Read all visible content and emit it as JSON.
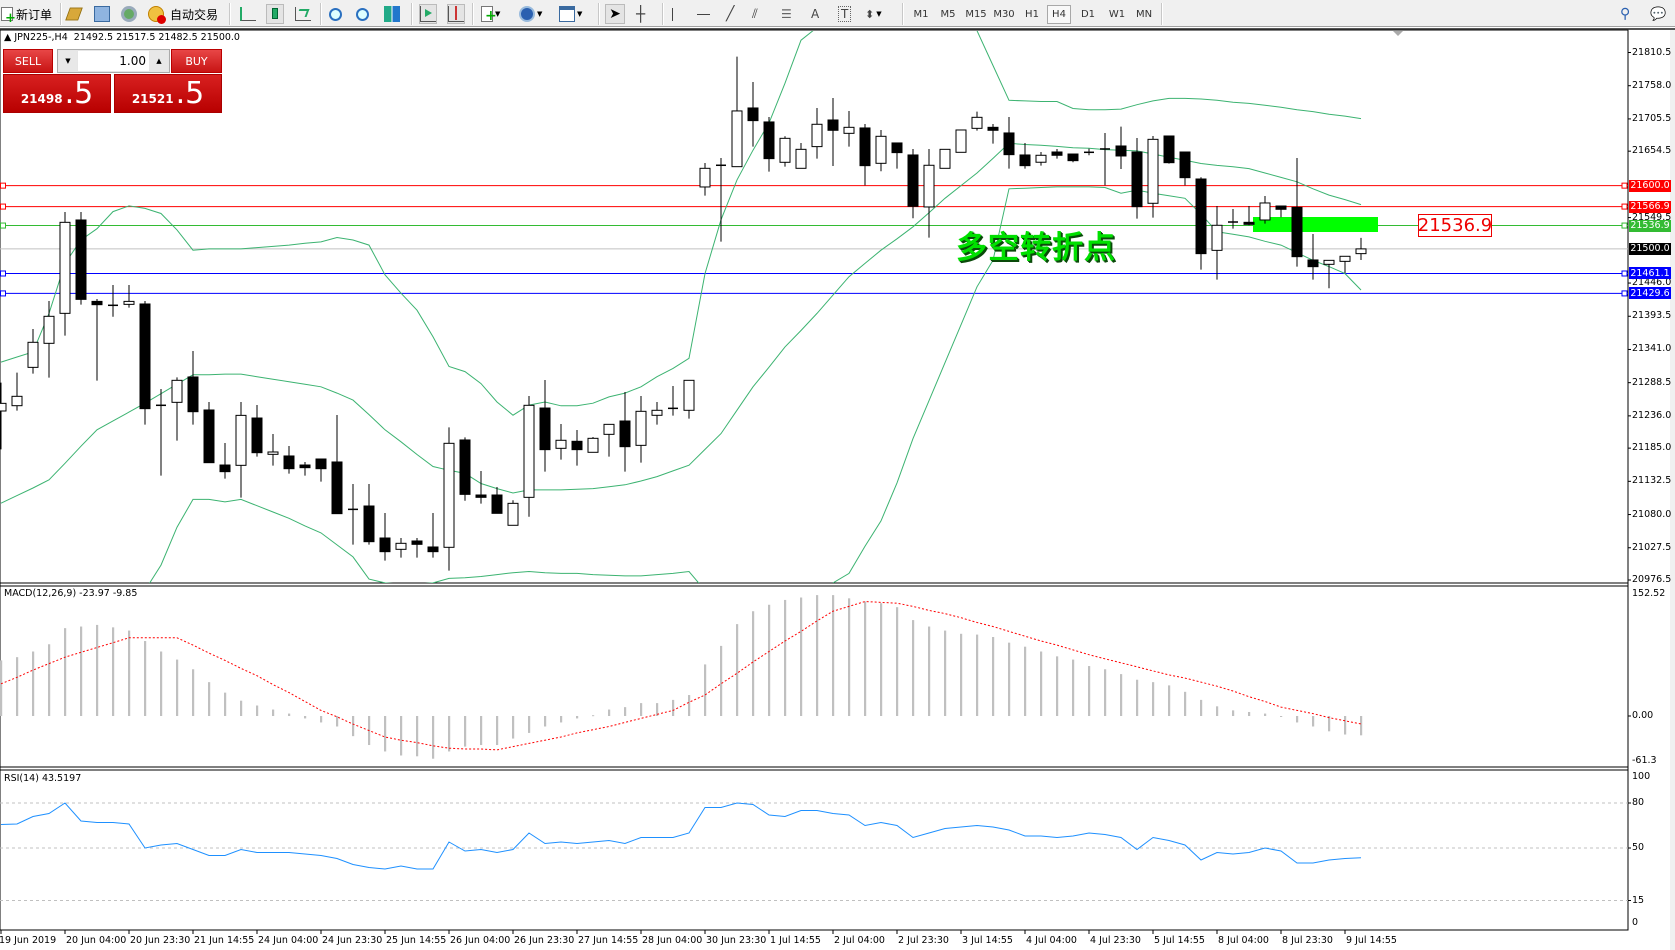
{
  "toolbar": {
    "new_order": "新订单",
    "auto_trading": "自动交易",
    "icons": [
      "new-order-icon",
      "gold-icon",
      "terminal-icon",
      "signals-icon",
      "auto-trading-icon",
      "bar-chart-icon",
      "candlestick-icon",
      "line-chart-icon",
      "zoom-in-icon",
      "zoom-out-icon",
      "tile-windows-icon",
      "auto-scroll-icon",
      "chart-shift-icon",
      "indicators-icon",
      "periods-icon",
      "templates-icon",
      "cursor-icon",
      "crosshair-icon",
      "vertical-line-icon",
      "horizontal-line-icon",
      "trendline-icon",
      "fibonacci-icon",
      "equidistant-channel-icon",
      "text-icon",
      "text-label-icon",
      "arrows-icon",
      "search-icon",
      "chat-icon"
    ],
    "timeframes": [
      "M1",
      "M5",
      "M15",
      "M30",
      "H1",
      "H4",
      "D1",
      "W1",
      "MN"
    ],
    "active_timeframe": "H4"
  },
  "chart": {
    "header": "JPN225-,H4  21492.5 21517.5 21482.5 21500.0",
    "annotation": "多空转折点",
    "level_callout": "21536.9"
  },
  "trade_panel": {
    "sell_label": "SELL",
    "buy_label": "BUY",
    "lot": "1.00",
    "sell_price_main": "21498",
    "sell_price_frac": ".5",
    "buy_price_main": "21521",
    "buy_price_frac": ".5"
  },
  "price_axis": {
    "ticks": [
      "21810.5",
      "21758.0",
      "21705.5",
      "21654.5",
      "21549.5",
      "21446.0",
      "21393.5",
      "21341.0",
      "21288.5",
      "21236.0",
      "21185.0",
      "21132.5",
      "21080.0",
      "21027.5",
      "20976.5"
    ],
    "levels": [
      {
        "label": "21600.0",
        "color": "#ff0000"
      },
      {
        "label": "21566.9",
        "color": "#ff0000"
      },
      {
        "label": "21536.9",
        "color": "#33bb33"
      },
      {
        "label": "21500.0",
        "color": "#000000"
      },
      {
        "label": "21461.1",
        "color": "#0000ff"
      },
      {
        "label": "21429.6",
        "color": "#0000ff"
      }
    ]
  },
  "macd": {
    "label": "MACD(12,26,9) -23.97 -9.85",
    "ticks": [
      "152.52",
      "0.00",
      "-61.3"
    ]
  },
  "rsi": {
    "label": "RSI(14) 43.5197",
    "ticks": [
      "100",
      "80",
      "50",
      "15",
      "0"
    ]
  },
  "time_axis": [
    "19 Jun 2019",
    "20 Jun 04:00",
    "20 Jun 23:30",
    "21 Jun 14:55",
    "24 Jun 04:00",
    "24 Jun 23:30",
    "25 Jun 14:55",
    "26 Jun 04:00",
    "26 Jun 23:30",
    "27 Jun 14:55",
    "28 Jun 04:00",
    "30 Jun 23:30",
    "1 Jul 14:55",
    "2 Jul 04:00",
    "2 Jul 23:30",
    "3 Jul 14:55",
    "4 Jul 04:00",
    "4 Jul 23:30",
    "5 Jul 14:55",
    "8 Jul 04:00",
    "8 Jul 23:30",
    "9 Jul 14:55"
  ],
  "colors": {
    "bollinger": "#3cb371",
    "macd_hist": "#c0c0c0",
    "macd_signal": "#ff0000",
    "rsi": "#1e90ff",
    "bid_line": "#c0c0c0",
    "accent_green_zone": "#00ff00"
  },
  "chart_data": {
    "type": "candlestick",
    "symbol": "JPN225-",
    "timeframe": "H4",
    "ohlc": [
      [
        21243.7,
        21288.5,
        21183.1,
        21255.8
      ],
      [
        21252.1,
        21304.3,
        21244.2,
        21266.9
      ],
      [
        21312.7,
        21373.3,
        21302.7,
        21352.3
      ],
      [
        21350.7,
        21417.6,
        21296.4,
        21393.4
      ],
      [
        21398.1,
        21558.3,
        21362.8,
        21542.0
      ],
      [
        21545.7,
        21558.3,
        21411.8,
        21420.2
      ],
      [
        21417.0,
        21420.8,
        21291.7,
        21411.8
      ],
      [
        21410.8,
        21442.9,
        21392.8,
        21410.8
      ],
      [
        21412.3,
        21442.9,
        21407.1,
        21417.0
      ],
      [
        21412.9,
        21417.6,
        21222.1,
        21247.4
      ],
      [
        21252.7,
        21278.5,
        21141.5,
        21252.7
      ],
      [
        21257.4,
        21296.9,
        21196.8,
        21292.2
      ],
      [
        21297.5,
        21338.6,
        21222.1,
        21242.6
      ],
      [
        21245.3,
        21257.9,
        21162.0,
        21162.0
      ],
      [
        21158.3,
        21193.1,
        21136.7,
        21147.8
      ],
      [
        21157.8,
        21257.9,
        21106.7,
        21236.8
      ],
      [
        21232.6,
        21253.2,
        21171.5,
        21177.8
      ],
      [
        21175.2,
        21207.3,
        21157.3,
        21178.9
      ],
      [
        21172.6,
        21188.4,
        21144.6,
        21152.5
      ],
      [
        21158.3,
        21163.1,
        21141.5,
        21154.1
      ],
      [
        21167.8,
        21167.8,
        21132.0,
        21152.5
      ],
      [
        21163.1,
        21237.4,
        21081.4,
        21081.4
      ],
      [
        21088.2,
        21128.3,
        21032.4,
        21088.2
      ],
      [
        21093.5,
        21128.3,
        21032.4,
        21037.1
      ],
      [
        21042.9,
        21082.4,
        21007.1,
        21021.3
      ],
      [
        21025.0,
        21042.9,
        21011.8,
        21034.5
      ],
      [
        21038.2,
        21042.9,
        21011.8,
        21032.9
      ],
      [
        21028.7,
        21082.4,
        21011.8,
        21021.3
      ],
      [
        21028.2,
        21217.9,
        20991.3,
        21192.6
      ],
      [
        21197.9,
        21202.1,
        21101.9,
        21111.9
      ],
      [
        21110.9,
        21148.8,
        21097.2,
        21107.2
      ],
      [
        21110.9,
        21123.5,
        21081.9,
        21081.9
      ],
      [
        21063.0,
        21102.5,
        21063.0,
        21097.7
      ],
      [
        21107.2,
        21267.4,
        21076.6,
        21252.7
      ],
      [
        21248.4,
        21292.7,
        21147.8,
        21182.6
      ],
      [
        21184.7,
        21223.1,
        21166.8,
        21197.4
      ],
      [
        21195.8,
        21213.7,
        21157.3,
        21182.6
      ],
      [
        21178.4,
        21202.6,
        21178.4,
        21200.5
      ],
      [
        21206.8,
        21222.6,
        21171.5,
        21222.6
      ],
      [
        21227.9,
        21273.7,
        21147.8,
        21187.3
      ],
      [
        21189.4,
        21267.4,
        21162.0,
        21243.2
      ],
      [
        21236.9,
        21257.9,
        21222.1,
        21244.8
      ],
      [
        21247.9,
        21283.2,
        21236.3,
        21247.9
      ],
      [
        21244.8,
        21292.2,
        21231.6,
        21292.2
      ],
      [
        21597.9,
        21635.8,
        21584.2,
        21627.4
      ],
      [
        21632.2,
        21643.7,
        21511.5,
        21632.2
      ],
      [
        21630.0,
        21804.0,
        21630.0,
        21718.1
      ],
      [
        21722.8,
        21763.9,
        21661.7,
        21702.8
      ],
      [
        21700.7,
        21708.6,
        21622.1,
        21642.7
      ],
      [
        21636.9,
        21678.0,
        21630.0,
        21674.8
      ],
      [
        21627.4,
        21667.5,
        21627.4,
        21657.4
      ],
      [
        21661.7,
        21722.8,
        21642.7,
        21697.0
      ],
      [
        21703.8,
        21738.6,
        21631.1,
        21687.5
      ],
      [
        21682.7,
        21718.1,
        21661.7,
        21692.2
      ],
      [
        21691.2,
        21697.5,
        21600.5,
        21631.6
      ],
      [
        21635.3,
        21688.0,
        21622.7,
        21678.0
      ],
      [
        21667.5,
        21667.5,
        21626.9,
        21652.2
      ],
      [
        21648.5,
        21658.0,
        21548.4,
        21567.3
      ],
      [
        21566.3,
        21658.0,
        21517.8,
        21632.2
      ],
      [
        21627.4,
        21657.4,
        21627.4,
        21657.4
      ],
      [
        21652.7,
        21688.0,
        21652.7,
        21688.0
      ],
      [
        21690.6,
        21717.0,
        21687.0,
        21708.0
      ],
      [
        21692.2,
        21697.5,
        21666.4,
        21687.5
      ],
      [
        21683.3,
        21708.6,
        21626.9,
        21649.0
      ],
      [
        21648.5,
        21667.5,
        21626.9,
        21631.6
      ],
      [
        21637.0,
        21653.2,
        21631.6,
        21648.0
      ],
      [
        21653.2,
        21658.0,
        21642.7,
        21648.0
      ],
      [
        21650.0,
        21650.0,
        21637.0,
        21639.5
      ],
      [
        21652.7,
        21658.5,
        21648.0,
        21652.7
      ],
      [
        21658.0,
        21683.3,
        21600.5,
        21658.0
      ],
      [
        21662.7,
        21693.3,
        21626.3,
        21646.9
      ],
      [
        21653.2,
        21675.3,
        21547.8,
        21566.8
      ],
      [
        21572.1,
        21678.5,
        21549.4,
        21673.2
      ],
      [
        21678.5,
        21678.5,
        21634.8,
        21636.3
      ],
      [
        21653.2,
        21653.2,
        21600.5,
        21612.6
      ],
      [
        21610.5,
        21613.2,
        21467.2,
        21492.5
      ],
      [
        21497.7,
        21567.8,
        21451.4,
        21537.3
      ],
      [
        21542.5,
        21563.1,
        21532.0,
        21542.5
      ],
      [
        21542.0,
        21567.8,
        21537.3,
        21538.8
      ],
      [
        21545.7,
        21583.6,
        21540.0,
        21572.6
      ],
      [
        21567.8,
        21567.8,
        21550.0,
        21562.6
      ],
      [
        21565.7,
        21643.7,
        21471.9,
        21487.7
      ],
      [
        21482.5,
        21523.6,
        21451.4,
        21471.9
      ],
      [
        21475.6,
        21481.9,
        21437.7,
        21481.9
      ],
      [
        21480.3,
        21488.3,
        21461.9,
        21488.3
      ],
      [
        21492.5,
        21517.5,
        21482.5,
        21500.0
      ]
    ],
    "bollinger_upper": [
      21321,
      21329,
      21337,
      21398,
      21477,
      21514,
      21532,
      21559,
      21568,
      21564,
      21556,
      21530,
      21498,
      21500,
      21500,
      21500,
      21502,
      21504,
      21506,
      21509,
      21511,
      21518,
      21514,
      21506,
      21459,
      21430,
      21403,
      21361,
      21314,
      21306,
      21287,
      21258,
      21237,
      21253,
      21258,
      21252,
      21252,
      21256,
      21266,
      21272,
      21282,
      21298,
      21311,
      21327,
      21461,
      21546,
      21609,
      21656,
      21699,
      21762,
      21830,
      21850,
      null,
      null,
      null,
      null,
      null,
      null,
      null,
      null,
      null,
      21845,
      21790,
      21735,
      21734,
      21733,
      21733,
      21722,
      21720,
      21720,
      21721,
      21728,
      21734,
      21738,
      21738,
      21737,
      21735,
      21732,
      21730,
      21727,
      21724,
      21720,
      21717,
      21713,
      21710,
      21706
    ],
    "bollinger_middle": [
      21098,
      21110,
      21122,
      21135,
      21161,
      21188,
      21214,
      21228,
      21242,
      21256,
      21271,
      21286,
      21301,
      21301,
      21302,
      21302,
      21298,
      21294,
      21290,
      21286,
      21282,
      21272,
      21261,
      21238,
      21214,
      21195,
      21175,
      21156,
      21150,
      21145,
      21129,
      21121,
      21114,
      21119,
      21119,
      21119,
      21120,
      21121,
      21124,
      21127,
      21133,
      21140,
      21149,
      21158,
      21183,
      21208,
      21245,
      21282,
      21313,
      21345,
      21371,
      21398,
      21427,
      21456,
      21477,
      21498,
      21516,
      21535,
      21557,
      21580,
      21600,
      21620,
      21643,
      21667,
      21665,
      21664,
      21662,
      21660,
      21659,
      21657,
      21656,
      21655,
      21650,
      21645,
      21640,
      21635,
      21632,
      21630,
      21627,
      21620,
      21613,
      21606,
      21595,
      21585,
      21578,
      21570
    ],
    "bollinger_lower": [
      null,
      null,
      null,
      null,
      null,
      null,
      null,
      null,
      null,
      20960,
      21000,
      21060,
      21104,
      21104,
      21100,
      21104,
      21094,
      21084,
      21074,
      21062,
      21051,
      21032,
      21013,
      20978,
      20972,
      20970,
      20970,
      20972,
      20979,
      20980,
      20982,
      20985,
      20988,
      20990,
      20988,
      20987,
      20987,
      20985,
      20984,
      20983,
      20983,
      20985,
      20987,
      20990,
      20960,
      null,
      null,
      null,
      null,
      null,
      null,
      null,
      20972,
      20987,
      21030,
      21070,
      21130,
      21200,
      21260,
      21320,
      21380,
      21440,
      21482,
      21595,
      21596,
      21597,
      21598,
      21598,
      21598,
      21597,
      21588,
      21593,
      21588,
      21584,
      21580,
      21555,
      21527,
      21523,
      21519,
      21512,
      21506,
      21494,
      21482,
      21472,
      21461,
      21435
    ],
    "horizontal_levels": [
      21600.0,
      21566.9,
      21536.9,
      21500.0,
      21461.1,
      21429.6
    ],
    "price_range": [
      20976.5,
      21810.5
    ],
    "macd_histogram": [
      69,
      73,
      80,
      89,
      109,
      111,
      113,
      110,
      106,
      93,
      80,
      70,
      58,
      42,
      29,
      19,
      13,
      8,
      3,
      -3,
      -8,
      -13,
      -25,
      -36,
      -44,
      -49,
      -50,
      -53,
      -44,
      -38,
      -36,
      -36,
      -28,
      -21,
      -13,
      -8,
      -3,
      1,
      8,
      11,
      16,
      16,
      20,
      26,
      64,
      87,
      114,
      130,
      138,
      144,
      147,
      150,
      150,
      146,
      142,
      140,
      135,
      119,
      111,
      106,
      102,
      101,
      98,
      91,
      86,
      80,
      74,
      70,
      62,
      58,
      52,
      45,
      42,
      38,
      30,
      20,
      12,
      7,
      5,
      3,
      0,
      -8,
      -13,
      -19,
      -23,
      -23.97
    ],
    "macd_signal": [
      40,
      48,
      57,
      65,
      73,
      79,
      85,
      91,
      97,
      97,
      97,
      97,
      88,
      78,
      69,
      59,
      50,
      39,
      29,
      18,
      7,
      -1,
      -10,
      -18,
      -26,
      -30,
      -33,
      -37,
      -40,
      -41,
      -41,
      -42,
      -38,
      -34,
      -30,
      -26,
      -21,
      -17,
      -13,
      -8,
      -3,
      2,
      7,
      17,
      26,
      40,
      53,
      67,
      80,
      93,
      105,
      118,
      130,
      136,
      142,
      141,
      140,
      136,
      131,
      127,
      122,
      116,
      111,
      105,
      99,
      93,
      88,
      82,
      76,
      71,
      66,
      61,
      56,
      51,
      47,
      42,
      37,
      31,
      24,
      18,
      11,
      7,
      3,
      -2,
      -6,
      -9.85
    ],
    "macd_range": [
      -61.3,
      152.52
    ],
    "rsi": [
      65.7,
      66,
      71,
      73,
      80,
      68,
      67,
      67,
      66,
      50,
      52,
      53,
      49,
      45,
      45,
      49,
      47,
      47,
      47,
      46,
      45,
      43,
      39,
      37,
      36,
      38,
      36,
      36,
      54,
      48,
      49,
      47,
      49,
      60,
      53,
      54,
      53,
      54,
      55,
      53,
      57,
      57,
      57,
      60,
      77,
      77,
      80,
      79,
      72,
      71,
      75,
      75,
      73,
      72,
      65,
      67,
      65,
      57,
      60,
      63,
      64,
      65,
      64,
      62,
      58,
      58,
      57,
      58,
      60,
      59,
      57,
      49,
      57,
      55,
      52,
      42,
      47,
      46,
      47,
      50,
      48,
      40,
      40,
      42,
      43,
      43.52
    ],
    "rsi_levels": [
      80,
      50,
      15
    ],
    "rsi_range": [
      0,
      100
    ]
  }
}
